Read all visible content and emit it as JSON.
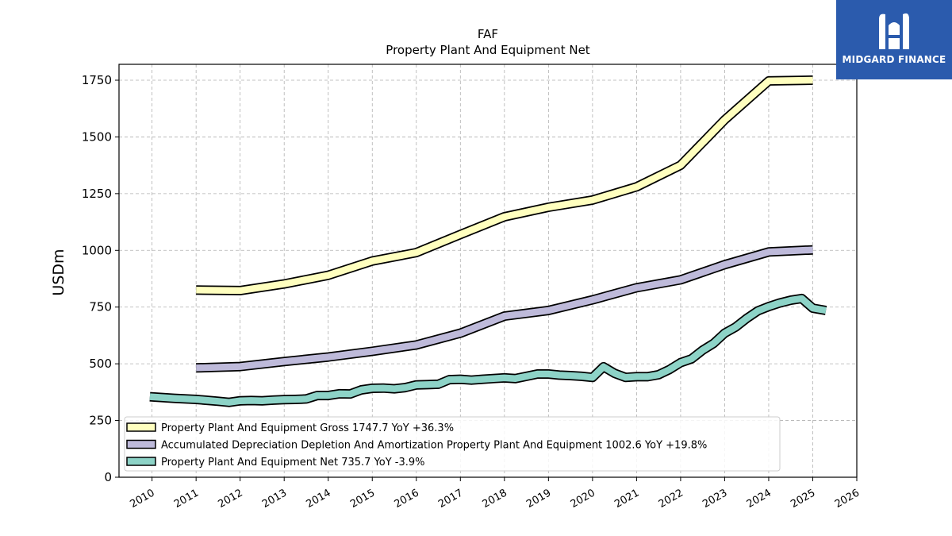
{
  "chart_data": {
    "type": "line",
    "title": "FAF",
    "subtitle": "Property Plant And Equipment Net",
    "ylabel": "USDm",
    "xlabel": "",
    "ylim": [
      0,
      1820
    ],
    "xlim": [
      2009.25,
      2026.0
    ],
    "yticks": [
      0,
      250,
      500,
      750,
      1000,
      1250,
      1500,
      1750
    ],
    "xticks": [
      "2010",
      "2011",
      "2012",
      "2013",
      "2014",
      "2015",
      "2016",
      "2017",
      "2018",
      "2019",
      "2020",
      "2021",
      "2022",
      "2023",
      "2024",
      "2025",
      "2026"
    ],
    "grid": true,
    "legend_position": "lower-left",
    "series": [
      {
        "name": "Property Plant And Equipment Gross",
        "legend_label": "Property Plant And Equipment Gross  1747.7 YoY +36.3%",
        "color": "#ffffbf",
        "points": [
          [
            2011.0,
            825
          ],
          [
            2012.0,
            823
          ],
          [
            2013.0,
            852
          ],
          [
            2014.0,
            890
          ],
          [
            2015.0,
            953
          ],
          [
            2016.0,
            990
          ],
          [
            2017.0,
            1070
          ],
          [
            2018.0,
            1148
          ],
          [
            2019.0,
            1190
          ],
          [
            2020.0,
            1222
          ],
          [
            2021.0,
            1280
          ],
          [
            2022.0,
            1375
          ],
          [
            2023.0,
            1575
          ],
          [
            2024.0,
            1747
          ],
          [
            2025.0,
            1750
          ]
        ]
      },
      {
        "name": "Accumulated Depreciation Depletion And Amortization Property Plant And Equipment",
        "legend_label": "Accumulated Depreciation Depletion And Amortization Property Plant And Equipment  1002.6 YoY +19.8%",
        "color": "#bebada",
        "points": [
          [
            2011.0,
            482
          ],
          [
            2012.0,
            488
          ],
          [
            2013.0,
            510
          ],
          [
            2014.0,
            530
          ],
          [
            2015.0,
            555
          ],
          [
            2016.0,
            583
          ],
          [
            2017.0,
            635
          ],
          [
            2018.0,
            710
          ],
          [
            2019.0,
            735
          ],
          [
            2020.0,
            782
          ],
          [
            2021.0,
            835
          ],
          [
            2022.0,
            870
          ],
          [
            2023.0,
            937
          ],
          [
            2024.0,
            993
          ],
          [
            2025.0,
            1002
          ]
        ]
      },
      {
        "name": "Property Plant And Equipment Net",
        "legend_label": "Property Plant And Equipment Net  735.7 YoY -3.9%",
        "color": "#8dd3c7",
        "points": [
          [
            2009.95,
            355
          ],
          [
            2010.5,
            348
          ],
          [
            2011.0,
            343
          ],
          [
            2011.5,
            335
          ],
          [
            2011.75,
            330
          ],
          [
            2012.0,
            337
          ],
          [
            2012.25,
            338
          ],
          [
            2012.5,
            337
          ],
          [
            2012.75,
            340
          ],
          [
            2013.0,
            342
          ],
          [
            2013.25,
            343
          ],
          [
            2013.5,
            345
          ],
          [
            2013.75,
            360
          ],
          [
            2014.0,
            360
          ],
          [
            2014.25,
            368
          ],
          [
            2014.5,
            367
          ],
          [
            2014.75,
            385
          ],
          [
            2015.0,
            392
          ],
          [
            2015.25,
            393
          ],
          [
            2015.5,
            390
          ],
          [
            2015.75,
            395
          ],
          [
            2016.0,
            407
          ],
          [
            2016.25,
            408
          ],
          [
            2016.5,
            410
          ],
          [
            2016.75,
            430
          ],
          [
            2017.0,
            432
          ],
          [
            2017.25,
            428
          ],
          [
            2017.5,
            432
          ],
          [
            2017.75,
            435
          ],
          [
            2018.0,
            438
          ],
          [
            2018.25,
            435
          ],
          [
            2018.5,
            445
          ],
          [
            2018.75,
            455
          ],
          [
            2019.0,
            455
          ],
          [
            2019.25,
            450
          ],
          [
            2019.5,
            448
          ],
          [
            2019.75,
            445
          ],
          [
            2020.0,
            440
          ],
          [
            2020.25,
            487
          ],
          [
            2020.5,
            458
          ],
          [
            2020.75,
            440
          ],
          [
            2021.0,
            443
          ],
          [
            2021.25,
            443
          ],
          [
            2021.5,
            452
          ],
          [
            2021.75,
            475
          ],
          [
            2022.0,
            505
          ],
          [
            2022.25,
            522
          ],
          [
            2022.5,
            560
          ],
          [
            2022.75,
            590
          ],
          [
            2023.0,
            635
          ],
          [
            2023.25,
            662
          ],
          [
            2023.5,
            700
          ],
          [
            2023.75,
            733
          ],
          [
            2024.0,
            752
          ],
          [
            2024.25,
            768
          ],
          [
            2024.5,
            780
          ],
          [
            2024.75,
            788
          ],
          [
            2025.0,
            745
          ],
          [
            2025.3,
            735
          ]
        ]
      }
    ]
  },
  "logo": {
    "text": "MIDGARD FINANCE",
    "icon": "midgard-logo-icon",
    "background": "#2b5bad"
  }
}
